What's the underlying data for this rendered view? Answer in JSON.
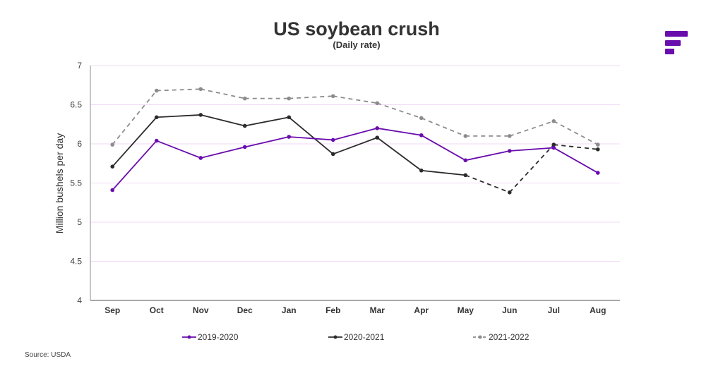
{
  "brand": {
    "logo_icon": "brand-logo-bars",
    "logo_color": "#6a0dad"
  },
  "source_text": "Source: USDA",
  "chart_data": {
    "type": "line",
    "title": "US soybean crush",
    "subtitle": "(Daily rate)",
    "xlabel": "",
    "ylabel": "Million bushels per day",
    "ylim": [
      4,
      7
    ],
    "yticks": [
      "4",
      "4.5",
      "5",
      "5.5",
      "6",
      "6.5",
      "7"
    ],
    "ytick_values": [
      4,
      4.5,
      5,
      5.5,
      6,
      6.5,
      7
    ],
    "grid": true,
    "legend_position": "bottom",
    "categories": [
      "Sep",
      "Oct",
      "Nov",
      "Dec",
      "Jan",
      "Feb",
      "Mar",
      "Apr",
      "May",
      "Jun",
      "Jul",
      "Aug"
    ],
    "series": [
      {
        "name": "2019-2020",
        "color": "#6a0dad",
        "style": "solid",
        "values": [
          5.41,
          6.04,
          5.82,
          5.96,
          6.09,
          6.05,
          6.2,
          6.11,
          5.79,
          5.91,
          5.95,
          5.63
        ]
      },
      {
        "name": "2020-2021",
        "color": "#2b2b2b",
        "style": "solid",
        "dashed_from_index": 8,
        "values": [
          5.71,
          6.34,
          6.37,
          6.23,
          6.34,
          5.87,
          6.08,
          5.66,
          5.6,
          5.38,
          5.99,
          5.93
        ]
      },
      {
        "name": "2021-2022",
        "color": "#8c8c8c",
        "style": "dashed",
        "values": [
          5.99,
          6.68,
          6.7,
          6.58,
          6.58,
          6.61,
          6.52,
          6.33,
          6.1,
          6.1,
          6.29,
          5.99
        ]
      }
    ]
  }
}
